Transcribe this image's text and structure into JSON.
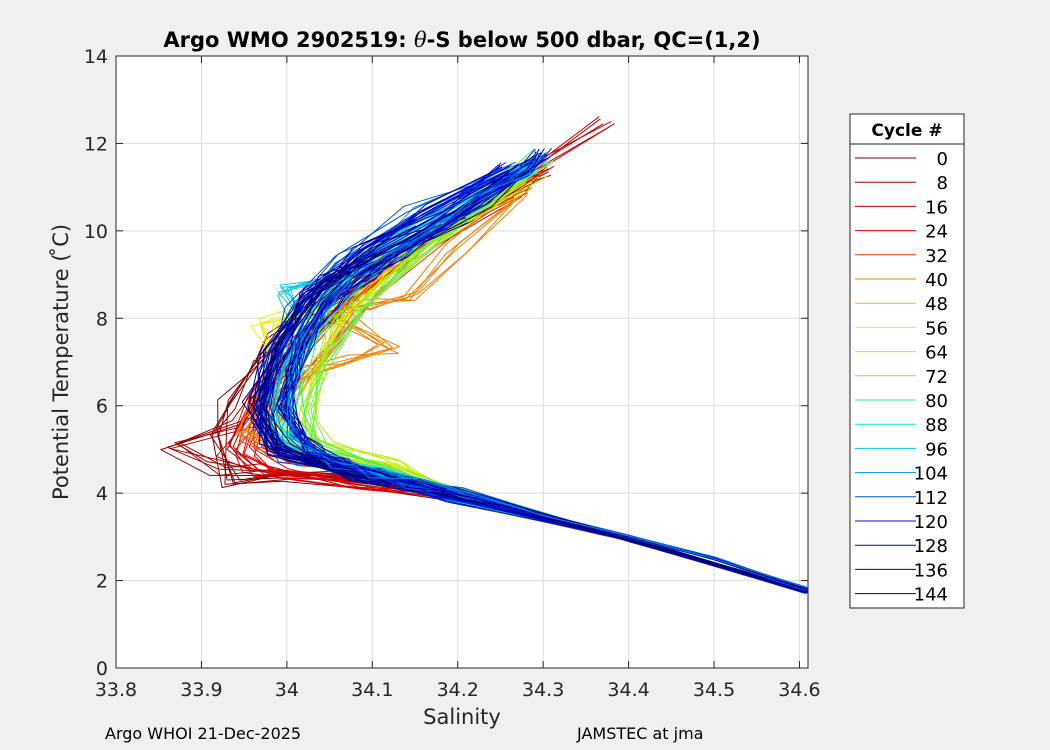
{
  "chart_data": {
    "type": "line",
    "title": {
      "prefix": "Argo WMO 2902519: ",
      "theta": "θ",
      "suffix": "-S below 500 dbar,  QC=(1,2)"
    },
    "xlabel": "Salinity",
    "ylabel": "Potential Temperature ( ̊C)",
    "xlim": [
      33.8,
      34.61
    ],
    "ylim": [
      0,
      14
    ],
    "xticks": [
      33.8,
      33.9,
      34.0,
      34.1,
      34.2,
      34.3,
      34.4,
      34.5,
      34.6
    ],
    "xtick_labels": [
      "33.8",
      "33.9",
      "34",
      "34.1",
      "34.2",
      "34.3",
      "34.4",
      "34.5",
      "34.6"
    ],
    "yticks": [
      0,
      2,
      4,
      6,
      8,
      10,
      12,
      14
    ],
    "ytick_labels": [
      "0",
      "2",
      "4",
      "6",
      "8",
      "10",
      "12",
      "14"
    ],
    "grid": true,
    "legend": {
      "title": "Cycle #",
      "placement": "outside-right",
      "entries": [
        {
          "label": "0",
          "color": "#800000"
        },
        {
          "label": "8",
          "color": "#a10000"
        },
        {
          "label": "16",
          "color": "#c50000"
        },
        {
          "label": "24",
          "color": "#e80000"
        },
        {
          "label": "32",
          "color": "#f03a00"
        },
        {
          "label": "40",
          "color": "#f07f00"
        },
        {
          "label": "48",
          "color": "#e6c300"
        },
        {
          "label": "56",
          "color": "#eef000"
        },
        {
          "label": "64",
          "color": "#b5f000"
        },
        {
          "label": "72",
          "color": "#70f040"
        },
        {
          "label": "80",
          "color": "#30e880"
        },
        {
          "label": "88",
          "color": "#00e8c0"
        },
        {
          "label": "96",
          "color": "#00c8f0"
        },
        {
          "label": "104",
          "color": "#0090e0"
        },
        {
          "label": "112",
          "color": "#0050e0"
        },
        {
          "label": "120",
          "color": "#0010e0"
        },
        {
          "label": "128",
          "color": "#0000b0"
        },
        {
          "label": "136",
          "color": "#000090"
        },
        {
          "label": "144",
          "color": "#000070"
        }
      ]
    },
    "mean_profile": {
      "salinity": [
        34.61,
        34.5,
        34.4,
        34.3,
        34.2,
        34.15,
        34.1,
        34.06,
        34.03,
        34.01,
        34.0,
        34.005,
        34.02,
        34.05,
        34.09,
        34.13,
        34.18,
        34.23,
        34.28,
        34.3
      ],
      "temperature": [
        1.8,
        2.5,
        3.0,
        3.5,
        3.95,
        4.2,
        4.45,
        4.7,
        5.0,
        5.4,
        6.0,
        6.7,
        7.5,
        8.3,
        9.0,
        9.5,
        10.1,
        10.7,
        11.4,
        11.75
      ]
    },
    "profiles": [
      {
        "cycle": 0,
        "color": "#800000",
        "salinity": [
          34.61,
          34.4,
          34.2,
          34.1,
          34.0,
          33.93,
          33.92,
          33.93,
          33.96,
          33.99,
          34.05,
          34.15,
          34.25,
          34.3
        ],
        "temperature": [
          1.75,
          2.95,
          3.95,
          4.25,
          4.35,
          4.3,
          5.3,
          6.0,
          6.9,
          7.5,
          8.5,
          9.7,
          10.8,
          11.4
        ]
      },
      {
        "cycle": 8,
        "color": "#a10000",
        "salinity": [
          34.61,
          34.4,
          34.2,
          34.08,
          33.98,
          33.92,
          33.86,
          33.95,
          33.97,
          34.0,
          34.06,
          34.15,
          34.25,
          34.3
        ],
        "temperature": [
          1.75,
          2.95,
          3.95,
          4.3,
          4.5,
          4.55,
          5.05,
          5.6,
          6.3,
          7.2,
          8.3,
          9.6,
          10.7,
          11.35
        ]
      },
      {
        "cycle": 16,
        "color": "#c50000",
        "salinity": [
          34.61,
          34.4,
          34.2,
          34.05,
          33.96,
          33.93,
          33.96,
          34.0,
          34.06,
          34.15,
          34.25,
          34.37
        ],
        "temperature": [
          1.75,
          2.95,
          3.95,
          4.35,
          4.55,
          5.0,
          6.2,
          7.1,
          8.3,
          9.7,
          11.0,
          12.45
        ]
      },
      {
        "cycle": 24,
        "color": "#e80000",
        "salinity": [
          34.61,
          34.4,
          34.2,
          34.1,
          34.0,
          33.95,
          33.97,
          34.0,
          34.07,
          34.16,
          34.26,
          34.3
        ],
        "temperature": [
          1.75,
          2.95,
          3.95,
          4.2,
          4.4,
          4.9,
          6.0,
          7.0,
          8.4,
          9.8,
          10.9,
          11.4
        ]
      },
      {
        "cycle": 32,
        "color": "#f03a00",
        "salinity": [
          34.61,
          34.4,
          34.2,
          34.1,
          34.0,
          33.96,
          33.99,
          34.04,
          34.11,
          34.18,
          34.27
        ],
        "temperature": [
          1.75,
          2.95,
          3.95,
          4.4,
          4.8,
          5.2,
          6.0,
          7.2,
          8.6,
          9.8,
          11.0
        ]
      },
      {
        "cycle": 40,
        "color": "#f07f00",
        "salinity": [
          34.61,
          34.4,
          34.2,
          34.1,
          34.02,
          33.95,
          33.97,
          34.02,
          34.08,
          34.12,
          34.05,
          34.1,
          34.14,
          34.2,
          34.28
        ],
        "temperature": [
          1.75,
          2.95,
          3.95,
          4.4,
          4.8,
          5.4,
          6.0,
          6.8,
          7.1,
          7.3,
          8.2,
          8.3,
          8.45,
          9.6,
          10.9
        ]
      },
      {
        "cycle": 48,
        "color": "#e6c300",
        "salinity": [
          34.61,
          34.4,
          34.2,
          34.12,
          34.02,
          33.98,
          34.0,
          34.03,
          34.08,
          34.16,
          34.26
        ],
        "temperature": [
          1.75,
          2.95,
          3.95,
          4.5,
          4.9,
          5.4,
          6.1,
          7.0,
          8.3,
          9.7,
          11.0
        ]
      },
      {
        "cycle": 56,
        "color": "#eef000",
        "salinity": [
          34.61,
          34.4,
          34.2,
          34.12,
          34.03,
          33.99,
          34.0,
          33.97,
          34.04,
          34.1,
          34.18,
          34.28
        ],
        "temperature": [
          1.75,
          2.95,
          3.95,
          4.55,
          5.0,
          5.5,
          6.6,
          7.9,
          8.3,
          9.2,
          9.9,
          11.1
        ]
      },
      {
        "cycle": 64,
        "color": "#b5f000",
        "salinity": [
          34.61,
          34.4,
          34.2,
          34.12,
          34.04,
          34.02,
          34.03,
          34.06,
          34.12,
          34.2,
          34.29
        ],
        "temperature": [
          1.75,
          2.95,
          3.95,
          4.6,
          5.1,
          5.6,
          6.5,
          7.8,
          9.0,
          10.2,
          11.3
        ]
      },
      {
        "cycle": 72,
        "color": "#70f040",
        "salinity": [
          34.61,
          34.4,
          34.2,
          34.12,
          34.04,
          34.02,
          34.04,
          34.08,
          34.16,
          34.25,
          34.3
        ],
        "temperature": [
          1.75,
          2.95,
          3.95,
          4.55,
          5.1,
          5.8,
          6.9,
          8.1,
          9.6,
          10.8,
          11.7
        ]
      },
      {
        "cycle": 80,
        "color": "#30e880",
        "salinity": [
          34.61,
          34.4,
          34.2,
          34.1,
          34.03,
          34.01,
          34.02,
          34.06,
          34.13,
          34.22,
          34.3
        ],
        "temperature": [
          1.75,
          2.95,
          3.95,
          4.5,
          5.0,
          5.8,
          7.0,
          8.3,
          9.6,
          10.7,
          11.75
        ]
      },
      {
        "cycle": 88,
        "color": "#00e8c0",
        "salinity": [
          34.61,
          34.4,
          34.2,
          34.1,
          34.02,
          33.99,
          34.0,
          34.03,
          34.1,
          34.2,
          34.29
        ],
        "temperature": [
          1.75,
          2.95,
          3.95,
          4.45,
          4.9,
          5.6,
          6.8,
          8.2,
          9.5,
          10.6,
          11.55
        ]
      },
      {
        "cycle": 96,
        "color": "#00c8f0",
        "salinity": [
          34.61,
          34.4,
          34.2,
          34.1,
          34.02,
          33.98,
          33.99,
          34.02,
          33.99,
          34.04,
          34.05,
          34.1,
          34.2,
          34.28
        ],
        "temperature": [
          1.75,
          2.95,
          3.95,
          4.45,
          4.85,
          5.5,
          6.6,
          7.9,
          8.6,
          8.8,
          8.7,
          9.4,
          10.6,
          11.4
        ]
      },
      {
        "cycle": 104,
        "color": "#0090e0",
        "salinity": [
          34.61,
          34.4,
          34.2,
          34.09,
          34.01,
          33.98,
          33.99,
          34.02,
          34.07,
          34.16,
          34.27
        ],
        "temperature": [
          1.75,
          2.95,
          3.95,
          4.4,
          4.85,
          5.5,
          6.6,
          8.0,
          9.2,
          10.4,
          11.4
        ]
      },
      {
        "cycle": 112,
        "color": "#0050e0",
        "salinity": [
          34.61,
          34.4,
          34.2,
          34.08,
          34.0,
          33.97,
          33.98,
          34.01,
          34.06,
          34.15,
          34.26
        ],
        "temperature": [
          1.75,
          2.95,
          3.95,
          4.4,
          4.85,
          5.6,
          6.8,
          8.2,
          9.3,
          10.4,
          11.4
        ]
      },
      {
        "cycle": 120,
        "color": "#0010e0",
        "salinity": [
          34.61,
          34.4,
          34.2,
          34.08,
          33.99,
          33.96,
          33.98,
          34.02,
          34.08,
          34.17,
          34.26
        ],
        "temperature": [
          1.75,
          2.95,
          3.95,
          4.4,
          4.9,
          5.7,
          7.0,
          8.4,
          9.5,
          10.5,
          11.4
        ]
      },
      {
        "cycle": 128,
        "color": "#0000b0",
        "salinity": [
          34.61,
          34.4,
          34.2,
          34.07,
          33.99,
          33.97,
          33.99,
          34.03,
          34.09,
          34.17,
          34.26
        ],
        "temperature": [
          1.75,
          2.95,
          3.95,
          4.4,
          4.9,
          5.8,
          7.1,
          8.5,
          9.6,
          10.5,
          11.3
        ]
      },
      {
        "cycle": 136,
        "color": "#000090",
        "salinity": [
          34.61,
          34.4,
          34.2,
          34.07,
          33.98,
          33.96,
          33.98,
          34.02,
          34.05,
          34.12,
          34.2
        ],
        "temperature": [
          1.75,
          2.95,
          3.95,
          4.45,
          5.0,
          6.0,
          7.3,
          8.5,
          9.0,
          9.6,
          10.3
        ]
      },
      {
        "cycle": 144,
        "color": "#000070",
        "salinity": [
          34.61,
          34.4,
          34.2,
          34.07,
          33.99,
          33.97,
          33.99,
          34.04,
          34.1,
          34.16
        ],
        "temperature": [
          1.75,
          2.95,
          3.95,
          4.45,
          5.0,
          6.1,
          7.4,
          8.6,
          9.4,
          10.0
        ]
      }
    ]
  },
  "footer": {
    "left": "Argo WHOI 21-Dec-2025",
    "right": "JAMSTEC at jma"
  }
}
